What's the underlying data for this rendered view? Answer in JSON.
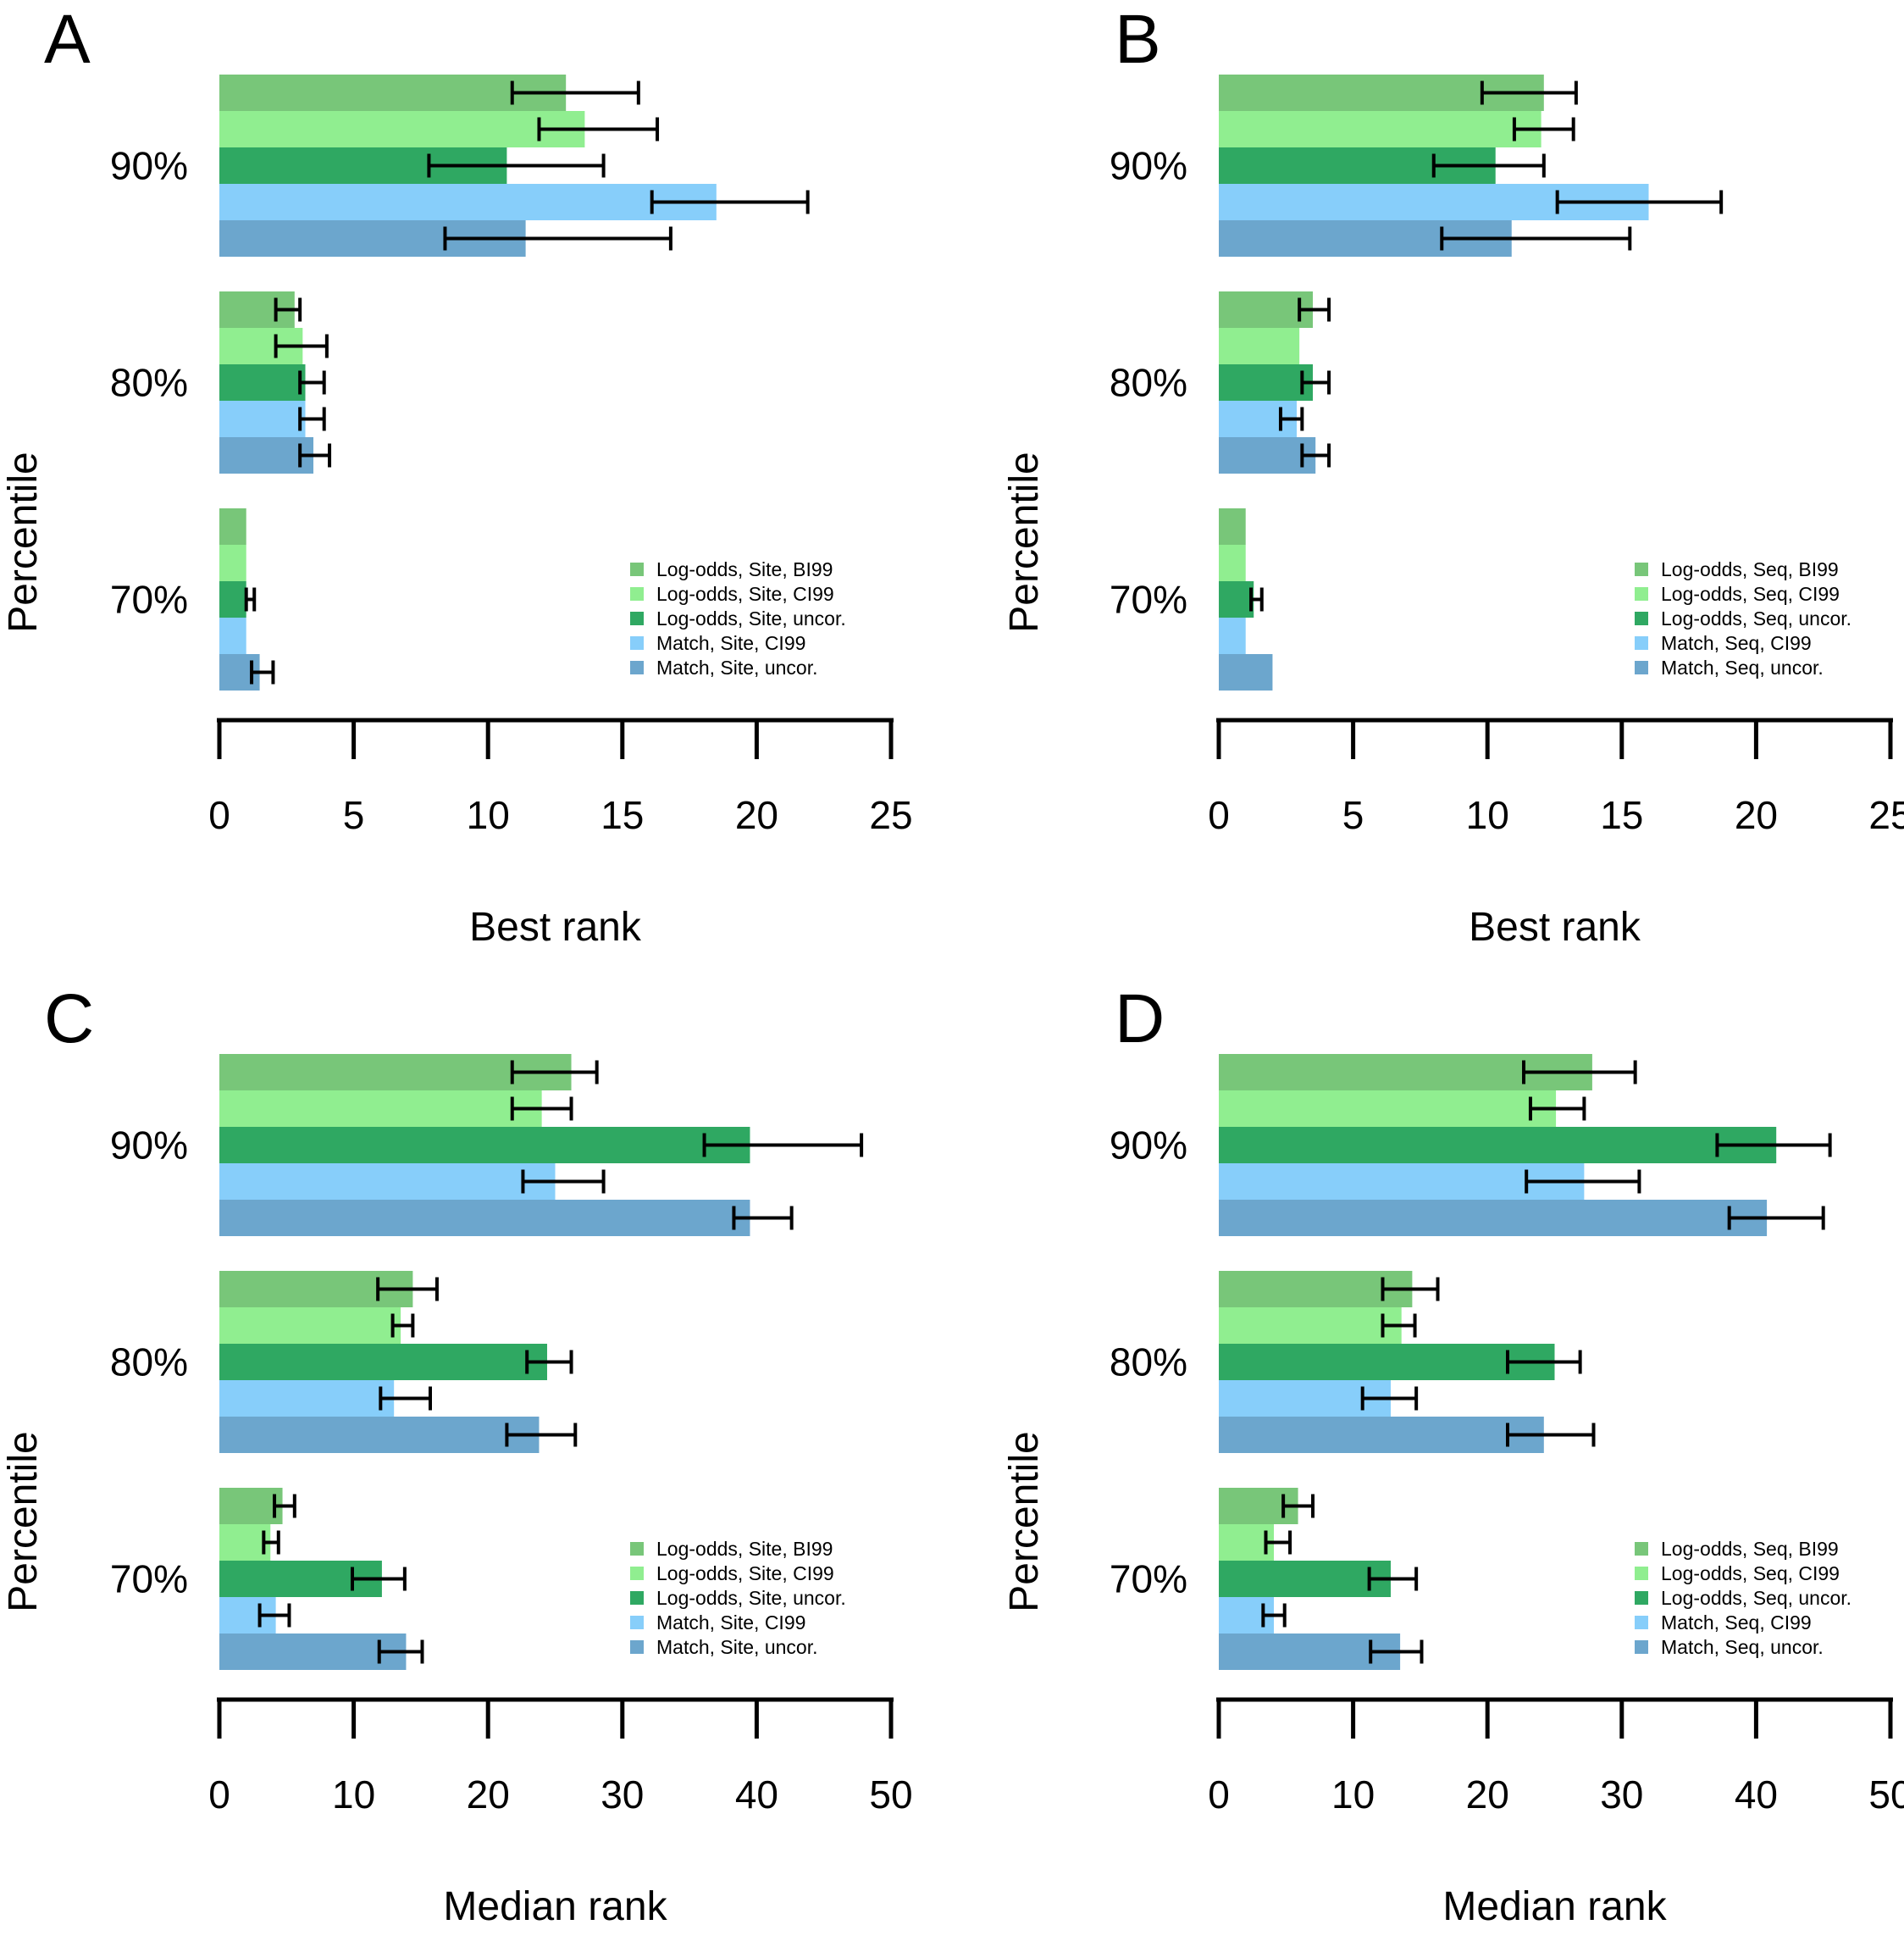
{
  "figure": {
    "background": "#ffffff",
    "axis_color": "#000000",
    "error_bar_color": "#000000",
    "panel_letters": [
      "A",
      "B",
      "C",
      "D"
    ]
  },
  "chart_data": [
    {
      "type": "bar",
      "panel_label": "A",
      "orientation": "horizontal",
      "xlabel": "Best rank",
      "ylabel": "Percentile",
      "xlim": [
        0,
        25
      ],
      "xticks": [
        0,
        5,
        10,
        15,
        20,
        25
      ],
      "categories": [
        "90%",
        "80%",
        "70%"
      ],
      "grid": false,
      "legend_position": "lower right",
      "series": [
        {
          "name": "Log-odds, Site, BI99",
          "color": "#78C679",
          "values": [
            12.9,
            2.8,
            1.0
          ],
          "ci_low": [
            10.9,
            2.1,
            null
          ],
          "ci_high": [
            15.6,
            3.0,
            null
          ]
        },
        {
          "name": "Log-odds, Site, CI99",
          "color": "#90EE90",
          "values": [
            13.6,
            3.1,
            1.0
          ],
          "ci_low": [
            11.9,
            2.1,
            null
          ],
          "ci_high": [
            16.3,
            4.0,
            null
          ]
        },
        {
          "name": "Log-odds, Site, uncor.",
          "color": "#2FA862",
          "values": [
            10.7,
            3.2,
            1.0
          ],
          "ci_low": [
            7.8,
            3.0,
            1.0
          ],
          "ci_high": [
            14.3,
            3.9,
            1.3
          ]
        },
        {
          "name": "Match, Site, CI99",
          "color": "#87CEFA",
          "values": [
            18.5,
            3.2,
            1.0
          ],
          "ci_low": [
            16.1,
            3.0,
            null
          ],
          "ci_high": [
            21.9,
            3.9,
            null
          ]
        },
        {
          "name": "Match, Site, uncor.",
          "color": "#6CA6CD",
          "values": [
            11.4,
            3.5,
            1.5
          ],
          "ci_low": [
            8.4,
            3.0,
            1.2
          ],
          "ci_high": [
            16.8,
            4.1,
            2.0
          ]
        }
      ]
    },
    {
      "type": "bar",
      "panel_label": "B",
      "orientation": "horizontal",
      "xlabel": "Best rank",
      "ylabel": "Percentile",
      "xlim": [
        0,
        25
      ],
      "xticks": [
        0,
        5,
        10,
        15,
        20,
        25
      ],
      "categories": [
        "90%",
        "80%",
        "70%"
      ],
      "grid": false,
      "legend_position": "lower right",
      "series": [
        {
          "name": "Log-odds, Seq, BI99",
          "color": "#78C679",
          "values": [
            12.1,
            3.5,
            1.0
          ],
          "ci_low": [
            9.8,
            3.0,
            null
          ],
          "ci_high": [
            13.3,
            4.1,
            null
          ]
        },
        {
          "name": "Log-odds, Seq, CI99",
          "color": "#90EE90",
          "values": [
            12.0,
            3.0,
            1.0
          ],
          "ci_low": [
            11.0,
            null,
            null
          ],
          "ci_high": [
            13.2,
            null,
            null
          ]
        },
        {
          "name": "Log-odds, Seq, uncor.",
          "color": "#2FA862",
          "values": [
            10.3,
            3.5,
            1.3
          ],
          "ci_low": [
            8.0,
            3.1,
            1.2
          ],
          "ci_high": [
            12.1,
            4.1,
            1.6
          ]
        },
        {
          "name": "Match, Seq, CI99",
          "color": "#87CEFA",
          "values": [
            16.0,
            2.9,
            1.0
          ],
          "ci_low": [
            12.6,
            2.3,
            null
          ],
          "ci_high": [
            18.7,
            3.1,
            null
          ]
        },
        {
          "name": "Match, Seq, uncor.",
          "color": "#6CA6CD",
          "values": [
            10.9,
            3.6,
            2.0
          ],
          "ci_low": [
            8.3,
            3.1,
            null
          ],
          "ci_high": [
            15.3,
            4.1,
            null
          ]
        }
      ]
    },
    {
      "type": "bar",
      "panel_label": "C",
      "orientation": "horizontal",
      "xlabel": "Median rank",
      "ylabel": "Percentile",
      "xlim": [
        0,
        50
      ],
      "xticks": [
        0,
        10,
        20,
        30,
        40,
        50
      ],
      "categories": [
        "90%",
        "80%",
        "70%"
      ],
      "grid": false,
      "legend_position": "lower right",
      "series": [
        {
          "name": "Log-odds, Site, BI99",
          "color": "#78C679",
          "values": [
            26.2,
            14.4,
            4.7
          ],
          "ci_low": [
            21.8,
            11.8,
            4.1
          ],
          "ci_high": [
            28.1,
            16.2,
            5.6
          ]
        },
        {
          "name": "Log-odds, Site, CI99",
          "color": "#90EE90",
          "values": [
            24.0,
            13.5,
            3.8
          ],
          "ci_low": [
            21.8,
            12.9,
            3.3
          ],
          "ci_high": [
            26.2,
            14.4,
            4.4
          ]
        },
        {
          "name": "Log-odds, Site, uncor.",
          "color": "#2FA862",
          "values": [
            39.5,
            24.4,
            12.1
          ],
          "ci_low": [
            36.1,
            22.9,
            9.9
          ],
          "ci_high": [
            47.8,
            26.2,
            13.8
          ]
        },
        {
          "name": "Match, Site, CI99",
          "color": "#87CEFA",
          "values": [
            25.0,
            13.0,
            4.2
          ],
          "ci_low": [
            22.6,
            12.0,
            3.0
          ],
          "ci_high": [
            28.6,
            15.7,
            5.2
          ]
        },
        {
          "name": "Match, Site, uncor.",
          "color": "#6CA6CD",
          "values": [
            39.5,
            23.8,
            13.9
          ],
          "ci_low": [
            38.3,
            21.4,
            11.9
          ],
          "ci_high": [
            42.6,
            26.5,
            15.1
          ]
        }
      ]
    },
    {
      "type": "bar",
      "panel_label": "D",
      "orientation": "horizontal",
      "xlabel": "Median rank",
      "ylabel": "Percentile",
      "xlim": [
        0,
        50
      ],
      "xticks": [
        0,
        10,
        20,
        30,
        40,
        50
      ],
      "categories": [
        "90%",
        "80%",
        "70%"
      ],
      "grid": false,
      "legend_position": "lower right",
      "series": [
        {
          "name": "Log-odds, Seq, BI99",
          "color": "#78C679",
          "values": [
            27.8,
            14.4,
            5.9
          ],
          "ci_low": [
            22.7,
            12.2,
            4.8
          ],
          "ci_high": [
            31.0,
            16.3,
            7.0
          ]
        },
        {
          "name": "Log-odds, Seq, CI99",
          "color": "#90EE90",
          "values": [
            25.1,
            13.6,
            4.1
          ],
          "ci_low": [
            23.2,
            12.2,
            3.5
          ],
          "ci_high": [
            27.2,
            14.6,
            5.3
          ]
        },
        {
          "name": "Log-odds, Seq, uncor.",
          "color": "#2FA862",
          "values": [
            41.5,
            25.0,
            12.8
          ],
          "ci_low": [
            37.1,
            21.5,
            11.2
          ],
          "ci_high": [
            45.5,
            26.9,
            14.7
          ]
        },
        {
          "name": "Match, Seq, CI99",
          "color": "#87CEFA",
          "values": [
            27.2,
            12.8,
            4.1
          ],
          "ci_low": [
            22.9,
            10.7,
            3.3
          ],
          "ci_high": [
            31.3,
            14.7,
            4.9
          ]
        },
        {
          "name": "Match, Seq, uncor.",
          "color": "#6CA6CD",
          "values": [
            40.8,
            24.2,
            13.5
          ],
          "ci_low": [
            38.0,
            21.5,
            11.3
          ],
          "ci_high": [
            45.0,
            27.9,
            15.1
          ]
        }
      ]
    }
  ]
}
